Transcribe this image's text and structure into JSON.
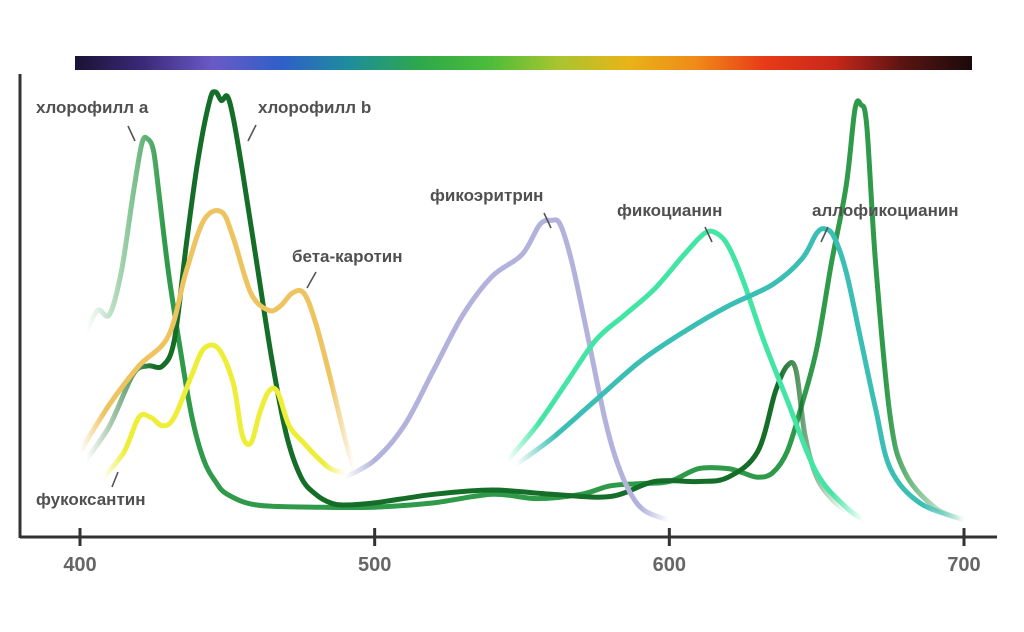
{
  "chart_data": {
    "type": "line",
    "title": "",
    "xlabel": "",
    "ylabel": "",
    "xlim": [
      380,
      710
    ],
    "ylim": [
      0,
      1.0
    ],
    "x_ticks": [
      400,
      500,
      600,
      700
    ],
    "spectrum_bar": {
      "range": [
        400,
        700
      ],
      "stops": [
        "#1a1236",
        "#3b2a7a",
        "#6a5ac6",
        "#2f5fc8",
        "#1e8e9a",
        "#2ea84a",
        "#4cbc3a",
        "#a8c530",
        "#e8b418",
        "#f08a18",
        "#e83a18",
        "#c8281a",
        "#5a1412",
        "#1a0a0a"
      ]
    },
    "series": [
      {
        "name": "хлорофилл а",
        "color": "#2f9a4a",
        "x": [
          402,
          406,
          410,
          414,
          418,
          421,
          423,
          425,
          427,
          430,
          434,
          438,
          442,
          446,
          450,
          460,
          480,
          500,
          520,
          540,
          555,
          570,
          580,
          590,
          600,
          610,
          620,
          625,
          630,
          635,
          640,
          645,
          650,
          655,
          660,
          663,
          665,
          667,
          670,
          675,
          680,
          690,
          700
        ],
        "y": [
          0.44,
          0.49,
          0.48,
          0.58,
          0.76,
          0.88,
          0.89,
          0.86,
          0.75,
          0.58,
          0.4,
          0.24,
          0.14,
          0.09,
          0.06,
          0.035,
          0.03,
          0.03,
          0.04,
          0.06,
          0.05,
          0.06,
          0.08,
          0.085,
          0.09,
          0.12,
          0.12,
          0.11,
          0.1,
          0.11,
          0.16,
          0.27,
          0.4,
          0.6,
          0.78,
          0.96,
          0.97,
          0.92,
          0.6,
          0.24,
          0.11,
          0.03,
          0.0
        ]
      },
      {
        "name": "хлорофилл b",
        "color": "#146e28",
        "x": [
          402,
          410,
          418,
          423,
          428,
          432,
          436,
          440,
          444,
          446,
          448,
          450,
          452,
          455,
          460,
          465,
          470,
          475,
          480,
          485,
          490,
          500,
          520,
          540,
          560,
          580,
          595,
          610,
          620,
          630,
          636,
          640,
          643,
          646,
          650,
          655,
          660
        ],
        "y": [
          0.14,
          0.22,
          0.34,
          0.36,
          0.36,
          0.42,
          0.64,
          0.84,
          0.98,
          1.0,
          0.98,
          0.99,
          0.94,
          0.82,
          0.6,
          0.38,
          0.2,
          0.1,
          0.06,
          0.04,
          0.035,
          0.04,
          0.06,
          0.07,
          0.06,
          0.055,
          0.09,
          0.09,
          0.1,
          0.16,
          0.3,
          0.36,
          0.35,
          0.2,
          0.1,
          0.05,
          0.02
        ]
      },
      {
        "name": "бета-каротин",
        "color": "#edc460",
        "x": [
          400,
          410,
          420,
          430,
          436,
          442,
          448,
          452,
          458,
          464,
          468,
          472,
          476,
          480,
          485,
          490,
          493
        ],
        "y": [
          0.16,
          0.27,
          0.36,
          0.43,
          0.58,
          0.7,
          0.72,
          0.66,
          0.53,
          0.49,
          0.5,
          0.53,
          0.53,
          0.46,
          0.33,
          0.19,
          0.12
        ]
      },
      {
        "name": "фукоксантин",
        "color": "#eeee38",
        "x": [
          408,
          415,
          420,
          424,
          428,
          432,
          438,
          442,
          447,
          452,
          455,
          458,
          461,
          464,
          467,
          471,
          476,
          480,
          485,
          490
        ],
        "y": [
          0.1,
          0.16,
          0.24,
          0.24,
          0.22,
          0.24,
          0.34,
          0.4,
          0.4,
          0.32,
          0.2,
          0.18,
          0.25,
          0.3,
          0.3,
          0.22,
          0.18,
          0.15,
          0.12,
          0.11
        ]
      },
      {
        "name": "фикоэритрин",
        "color": "#b2b2dc",
        "x": [
          490,
          500,
          510,
          520,
          530,
          540,
          550,
          556,
          560,
          563,
          567,
          572,
          578,
          582,
          587,
          592,
          600
        ],
        "y": [
          0.1,
          0.14,
          0.22,
          0.35,
          0.48,
          0.57,
          0.62,
          0.69,
          0.7,
          0.69,
          0.6,
          0.44,
          0.24,
          0.14,
          0.06,
          0.02,
          0.0
        ]
      },
      {
        "name": "фикоцианин",
        "color": "#43e5a5",
        "x": [
          545,
          555,
          565,
          575,
          585,
          595,
          605,
          612,
          616,
          620,
          625,
          632,
          640,
          650,
          660,
          666
        ],
        "y": [
          0.14,
          0.22,
          0.32,
          0.42,
          0.48,
          0.54,
          0.62,
          0.67,
          0.67,
          0.64,
          0.56,
          0.42,
          0.28,
          0.11,
          0.03,
          0.0
        ]
      },
      {
        "name": "аллофикоцианин",
        "color": "#3bbfb5",
        "x": [
          548,
          560,
          575,
          590,
          605,
          620,
          635,
          645,
          650,
          653,
          656,
          660,
          665,
          670,
          675,
          685,
          700
        ],
        "y": [
          0.13,
          0.19,
          0.28,
          0.37,
          0.44,
          0.5,
          0.55,
          0.61,
          0.67,
          0.68,
          0.66,
          0.58,
          0.42,
          0.26,
          0.12,
          0.04,
          0.0
        ]
      }
    ],
    "annotations": [
      {
        "text": "хлорофилл а",
        "series": "хлорофилл а",
        "x": 420,
        "y": 0.87
      },
      {
        "text": "хлорофилл b",
        "series": "хлорофилл b",
        "x": 452,
        "y": 0.86
      },
      {
        "text": "бета-каротин",
        "series": "бета-каротин",
        "x": 476,
        "y": 0.56
      },
      {
        "text": "фукоксантин",
        "series": "фукоксантин",
        "x": 418,
        "y": 0.18
      },
      {
        "text": "фикоэритрин",
        "series": "фикоэритрин",
        "x": 559,
        "y": 0.72
      },
      {
        "text": "фикоцианин",
        "series": "фикоцианин",
        "x": 615,
        "y": 0.69
      },
      {
        "text": "аллофикоцианин",
        "series": "аллофикоцианин",
        "x": 651,
        "y": 0.7
      }
    ]
  }
}
